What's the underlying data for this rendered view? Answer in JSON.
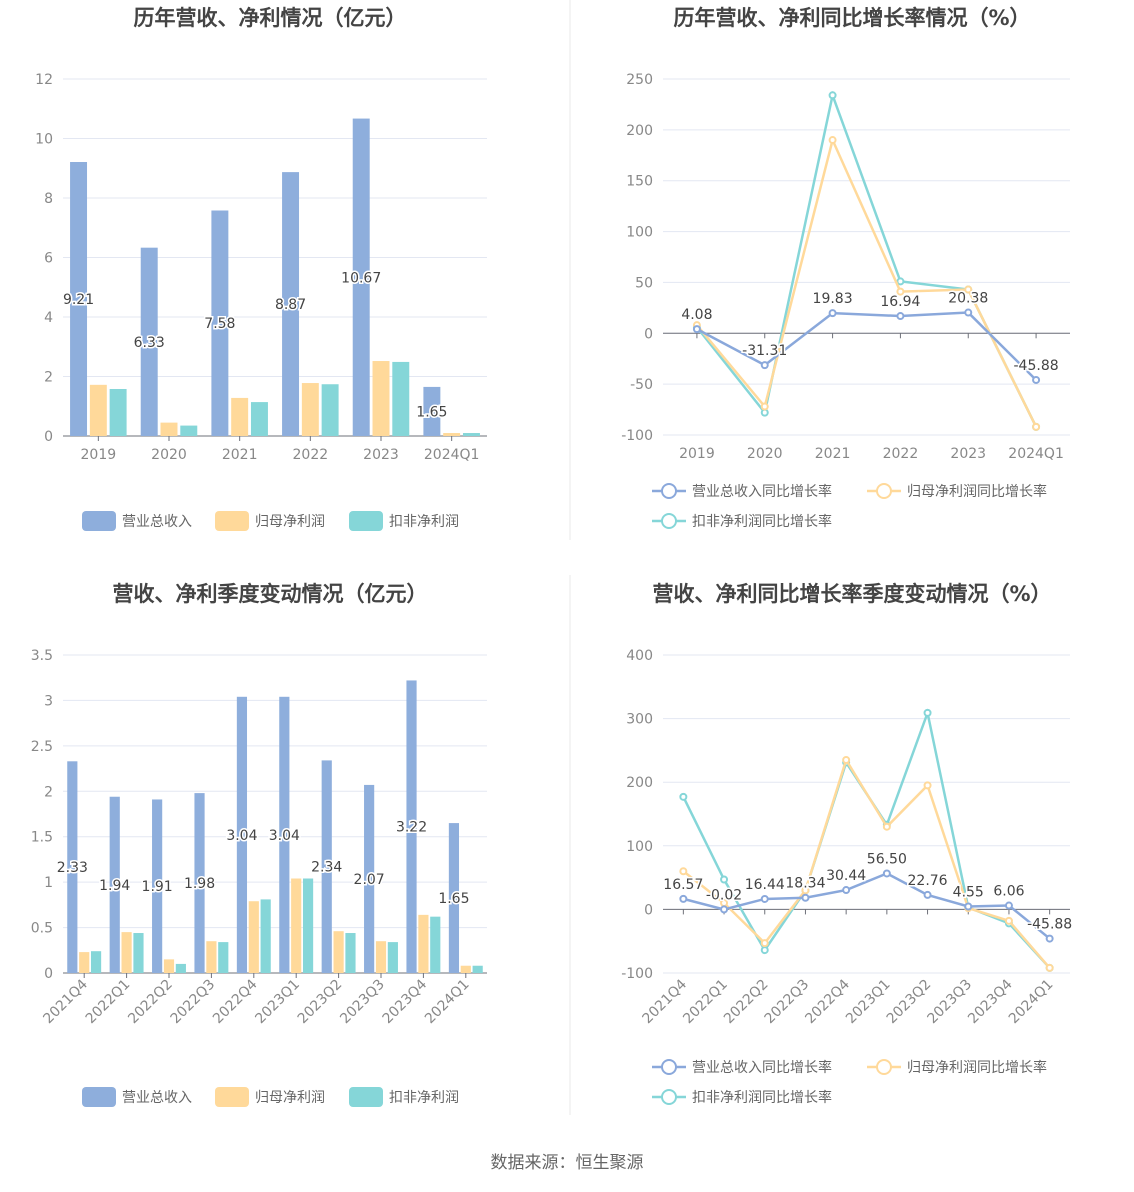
{
  "colors": {
    "revenue": "#8eaedc",
    "net_profit": "#ffd99a",
    "deducted_profit": "#85d6d8",
    "revenue_line": "#8aa8db"
  },
  "source": "数据来源：恒生聚源",
  "chart_data": [
    {
      "type": "bar",
      "title": "历年营收、净利情况（亿元）",
      "categories": [
        "2019",
        "2020",
        "2021",
        "2022",
        "2023",
        "2024Q1"
      ],
      "ylim": [
        0,
        12
      ],
      "yticks": [
        0,
        2,
        4,
        6,
        8,
        10,
        12
      ],
      "grid": true,
      "legend": "bottom",
      "series": [
        {
          "name": "营业总收入",
          "values": [
            9.21,
            6.33,
            7.58,
            8.87,
            10.67,
            1.65
          ],
          "labels": [
            "9.21",
            "6.33",
            "7.58",
            "8.87",
            "10.67",
            "1.65"
          ]
        },
        {
          "name": "归母净利润",
          "values": [
            1.72,
            0.45,
            1.28,
            1.78,
            2.52,
            0.1
          ]
        },
        {
          "name": "扣非净利润",
          "values": [
            1.58,
            0.35,
            1.14,
            1.74,
            2.49,
            0.1
          ]
        }
      ]
    },
    {
      "type": "line",
      "title": "历年营收、净利同比增长率情况（%）",
      "categories": [
        "2019",
        "2020",
        "2021",
        "2022",
        "2023",
        "2024Q1"
      ],
      "ylim": [
        -100,
        250
      ],
      "yticks": [
        -100,
        -50,
        0,
        50,
        100,
        150,
        200,
        250
      ],
      "grid": true,
      "legend": "bottom",
      "series": [
        {
          "name": "营业总收入同比增长率",
          "values": [
            4.08,
            -31.31,
            19.83,
            16.94,
            20.38,
            -45.88
          ],
          "labels": [
            "4.08",
            "-31.31",
            "19.83",
            "16.94",
            "20.38",
            "-45.88"
          ]
        },
        {
          "name": "归母净利润同比增长率",
          "values": [
            8,
            -72,
            190,
            41,
            43,
            -92
          ]
        },
        {
          "name": "扣非净利润同比增长率",
          "values": [
            6,
            -78,
            234,
            51,
            43,
            -92
          ]
        }
      ]
    },
    {
      "type": "bar",
      "title": "营收、净利季度变动情况（亿元）",
      "categories": [
        "2021Q4",
        "2022Q1",
        "2022Q2",
        "2022Q3",
        "2022Q4",
        "2023Q1",
        "2023Q2",
        "2023Q3",
        "2023Q4",
        "2024Q1"
      ],
      "ylim": [
        0,
        3.5
      ],
      "yticks": [
        0,
        0.5,
        1,
        1.5,
        2,
        2.5,
        3,
        3.5
      ],
      "grid": true,
      "legend": "bottom",
      "series": [
        {
          "name": "营业总收入",
          "values": [
            2.33,
            1.94,
            1.91,
            1.98,
            3.04,
            3.04,
            2.34,
            2.07,
            3.22,
            1.65
          ],
          "labels": [
            "2.33",
            "1.94",
            "1.91",
            "1.98",
            "3.04",
            "3.04",
            "2.34",
            "2.07",
            "3.22",
            "1.65"
          ]
        },
        {
          "name": "归母净利润",
          "values": [
            0.23,
            0.45,
            0.15,
            0.35,
            0.79,
            1.04,
            0.46,
            0.35,
            0.64,
            0.08
          ]
        },
        {
          "name": "扣非净利润",
          "values": [
            0.24,
            0.44,
            0.1,
            0.34,
            0.81,
            1.04,
            0.44,
            0.34,
            0.62,
            0.08
          ]
        }
      ]
    },
    {
      "type": "line",
      "title": "营收、净利同比增长率季度变动情况（%）",
      "categories": [
        "2021Q4",
        "2022Q1",
        "2022Q2",
        "2022Q3",
        "2022Q4",
        "2023Q1",
        "2023Q2",
        "2023Q3",
        "2023Q4",
        "2024Q1"
      ],
      "ylim": [
        -100,
        400
      ],
      "yticks": [
        -100,
        0,
        100,
        200,
        300,
        400
      ],
      "grid": true,
      "legend": "bottom",
      "series": [
        {
          "name": "营业总收入同比增长率",
          "values": [
            16.57,
            -0.02,
            16.44,
            18.34,
            30.44,
            56.5,
            22.76,
            4.55,
            6.06,
            -45.88
          ],
          "labels": [
            "16.57",
            "-0.02",
            "16.44",
            "18.34",
            "30.44",
            "56.50",
            "22.76",
            "4.55",
            "6.06",
            "-45.88"
          ]
        },
        {
          "name": "归母净利润同比增长率",
          "values": [
            60,
            10,
            -53,
            30,
            235,
            130,
            195,
            2,
            -18,
            -92
          ]
        },
        {
          "name": "扣非净利润同比增长率",
          "values": [
            177,
            47,
            -64,
            30,
            231,
            133,
            309,
            3,
            -22,
            -92
          ]
        }
      ]
    }
  ]
}
